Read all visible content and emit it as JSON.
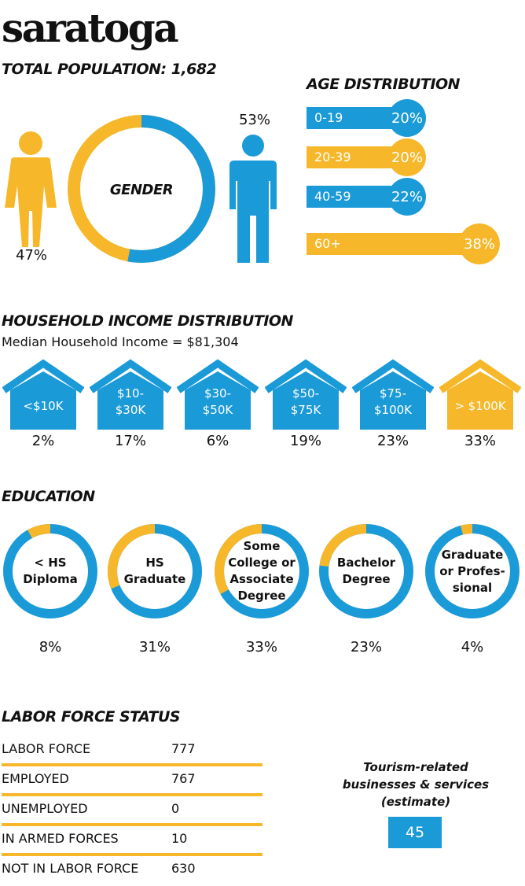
{
  "header": {
    "town": "saratoga",
    "population_label": "TOTAL POPULATION: 1,682",
    "population": 1682
  },
  "colors": {
    "blue": "#1b9ad8",
    "gold": "#f6b82a"
  },
  "gender": {
    "title": "GENDER",
    "female": {
      "icon": "woman-icon",
      "percent": 47,
      "label": "47%"
    },
    "male": {
      "icon": "man-icon",
      "percent": 53,
      "label": "53%"
    }
  },
  "age": {
    "title": "AGE DISTRIBUTION",
    "groups": [
      {
        "range": "0-19",
        "percent": 20,
        "label": "20%",
        "color": "#1b9ad8"
      },
      {
        "range": "20-39",
        "percent": 20,
        "label": "20%",
        "color": "#f6b82a"
      },
      {
        "range": "40-59",
        "percent": 22,
        "label": "22%",
        "color": "#1b9ad8"
      },
      {
        "range": "60+",
        "percent": 38,
        "label": "38%",
        "color": "#f6b82a"
      }
    ]
  },
  "income": {
    "title": "HOUSEHOLD INCOME DISTRIBUTION",
    "median_text": "Median Household Income = $81,304",
    "brackets": [
      {
        "line1": "<$10K",
        "line2": "",
        "percent": 2,
        "label": "2%",
        "color": "#1b9ad8"
      },
      {
        "line1": "$10-",
        "line2": "$30K",
        "percent": 17,
        "label": "17%",
        "color": "#1b9ad8"
      },
      {
        "line1": "$30-",
        "line2": "$50K",
        "percent": 6,
        "label": "6%",
        "color": "#1b9ad8"
      },
      {
        "line1": "$50-",
        "line2": "$75K",
        "percent": 19,
        "label": "19%",
        "color": "#1b9ad8"
      },
      {
        "line1": "$75-",
        "line2": "$100K",
        "percent": 23,
        "label": "23%",
        "color": "#1b9ad8"
      },
      {
        "line1": "> $100K",
        "line2": "",
        "percent": 33,
        "label": "33%",
        "color": "#f6b82a"
      }
    ]
  },
  "education": {
    "title": "EDUCATION",
    "levels": [
      {
        "lines": [
          "< HS",
          "Diploma"
        ],
        "percent": 8,
        "label": "8%"
      },
      {
        "lines": [
          "HS",
          "Graduate"
        ],
        "percent": 31,
        "label": "31%"
      },
      {
        "lines": [
          "Some",
          "College or",
          "Associate",
          "Degree"
        ],
        "percent": 33,
        "label": "33%"
      },
      {
        "lines": [
          "Bachelor",
          "Degree"
        ],
        "percent": 23,
        "label": "23%"
      },
      {
        "lines": [
          "Graduate",
          "or Profes-",
          "sional"
        ],
        "percent": 4,
        "label": "4%"
      }
    ]
  },
  "labor": {
    "title": "LABOR FORCE STATUS",
    "rows": [
      {
        "label": "LABOR FORCE",
        "value": "777"
      },
      {
        "label": "EMPLOYED",
        "value": "767"
      },
      {
        "label": "UNEMPLOYED",
        "value": "0"
      },
      {
        "label": "IN ARMED FORCES",
        "value": "10"
      },
      {
        "label": "NOT IN LABOR FORCE",
        "value": "630"
      }
    ]
  },
  "tourism": {
    "lines": [
      "Tourism-related",
      "businesses & services",
      "(estimate)"
    ],
    "value": "45"
  }
}
